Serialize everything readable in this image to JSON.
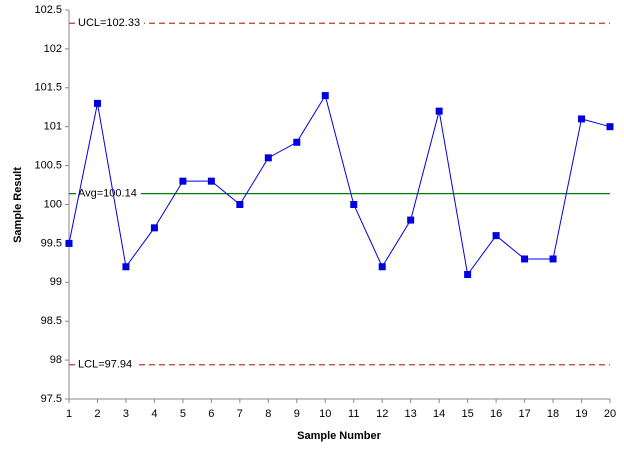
{
  "chart_data": {
    "type": "line",
    "x_label": "Sample Number",
    "y_label": "Sample Result",
    "x": [
      1,
      2,
      3,
      4,
      5,
      6,
      7,
      8,
      9,
      10,
      11,
      12,
      13,
      14,
      15,
      16,
      17,
      18,
      19,
      20
    ],
    "series": [
      {
        "color": "#0000e0",
        "values": [
          99.5,
          101.3,
          99.2,
          99.7,
          100.3,
          100.3,
          100.0,
          100.6,
          100.8,
          101.4,
          100.0,
          99.2,
          99.8,
          101.2,
          99.1,
          99.6,
          99.3,
          99.3,
          101.1,
          101.0
        ]
      }
    ],
    "xlim": [
      1,
      20
    ],
    "xticks": [
      1,
      2,
      3,
      4,
      5,
      6,
      7,
      8,
      9,
      10,
      11,
      12,
      13,
      14,
      15,
      16,
      17,
      18,
      19,
      20
    ],
    "ylim": [
      97.5,
      102.5
    ],
    "yticks": [
      97.5,
      98,
      98.5,
      99,
      99.5,
      100,
      100.5,
      101,
      101.5,
      102,
      102.5
    ],
    "grid": false,
    "reference_lines": [
      {
        "label": "UCL=102.33",
        "value": 102.33,
        "color": "#c0392b",
        "dashed": true
      },
      {
        "label": "Avg=100.14",
        "value": 100.14,
        "color": "#008000",
        "dashed": false
      },
      {
        "label": "LCL=97.94",
        "value": 97.94,
        "color": "#c0392b",
        "dashed": true
      }
    ]
  }
}
